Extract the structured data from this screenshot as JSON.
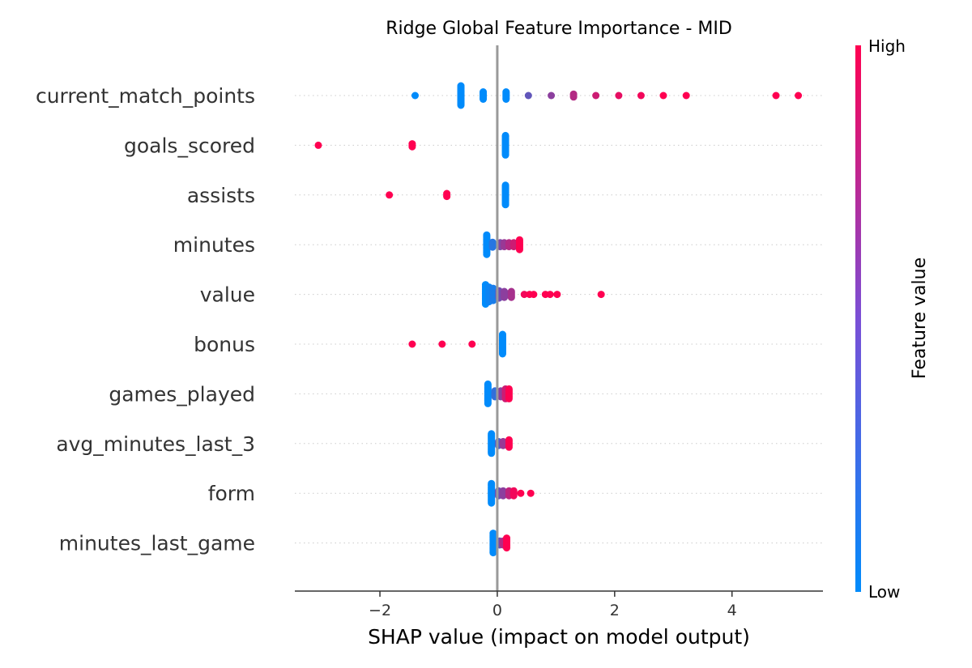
{
  "chart_data": {
    "type": "scatter",
    "subtype": "shap-beeswarm",
    "title": "Ridge Global Feature Importance - MID",
    "xlabel": "SHAP value (impact on model output)",
    "ylabel": "",
    "xlim": [
      -3.45,
      5.55
    ],
    "xticks": [
      -2,
      0,
      2,
      4
    ],
    "xtick_labels": [
      "−2",
      "0",
      "2",
      "4"
    ],
    "zero_line": 0,
    "grid": false,
    "colorbar": {
      "title": "Feature value",
      "high_label": "High",
      "low_label": "Low",
      "low_color": "#008bfb",
      "high_color": "#ff0051"
    },
    "features": [
      {
        "name": "current_match_points",
        "points": [
          {
            "x": -1.4,
            "c": 0.0
          },
          {
            "x": -0.62,
            "c": 0.0,
            "n": 20,
            "spread": 0.4
          },
          {
            "x": -0.24,
            "c": 0.0,
            "n": 8,
            "spread": 0.15
          },
          {
            "x": 0.15,
            "c": 0.0,
            "n": 8,
            "spread": 0.15
          },
          {
            "x": 0.53,
            "c": 0.38
          },
          {
            "x": 0.92,
            "c": 0.55
          },
          {
            "x": 1.3,
            "c": 0.7,
            "n": 3,
            "spread": 0.06
          },
          {
            "x": 1.68,
            "c": 0.8
          },
          {
            "x": 2.07,
            "c": 0.9
          },
          {
            "x": 2.45,
            "c": 0.95
          },
          {
            "x": 2.83,
            "c": 1.0
          },
          {
            "x": 3.22,
            "c": 1.0
          },
          {
            "x": 4.75,
            "c": 1.0
          },
          {
            "x": 5.13,
            "c": 1.0
          }
        ]
      },
      {
        "name": "goals_scored",
        "points": [
          {
            "x": -3.05,
            "c": 1.0
          },
          {
            "x": -1.45,
            "c": 1.0,
            "n": 3,
            "spread": 0.06
          },
          {
            "x": 0.14,
            "c": 0.0,
            "n": 20,
            "spread": 0.4
          }
        ]
      },
      {
        "name": "assists",
        "points": [
          {
            "x": -1.84,
            "c": 1.0
          },
          {
            "x": -0.86,
            "c": 1.0,
            "n": 3,
            "spread": 0.06
          },
          {
            "x": 0.14,
            "c": 0.0,
            "n": 20,
            "spread": 0.4
          }
        ]
      },
      {
        "name": "minutes",
        "points": [
          {
            "x": -0.18,
            "c": 0.0,
            "n": 20,
            "spread": 0.4
          },
          {
            "x": -0.08,
            "c": 0.15,
            "n": 5,
            "spread": 0.1
          },
          {
            "x": 0.05,
            "c": 0.5,
            "n": 4,
            "spread": 0.08
          },
          {
            "x": 0.12,
            "c": 0.6,
            "n": 4,
            "spread": 0.08
          },
          {
            "x": 0.2,
            "c": 0.7,
            "n": 4,
            "spread": 0.08
          },
          {
            "x": 0.28,
            "c": 0.8,
            "n": 4,
            "spread": 0.08
          },
          {
            "x": 0.38,
            "c": 1.0,
            "n": 8,
            "spread": 0.2
          }
        ]
      },
      {
        "name": "value",
        "points": [
          {
            "x": -0.2,
            "c": 0.0,
            "n": 14,
            "spread": 0.4
          },
          {
            "x": -0.14,
            "c": 0.05,
            "n": 12,
            "spread": 0.3
          },
          {
            "x": -0.07,
            "c": 0.1,
            "n": 10,
            "spread": 0.25
          },
          {
            "x": 0.03,
            "c": 0.45,
            "n": 6,
            "spread": 0.15
          },
          {
            "x": 0.12,
            "c": 0.55,
            "n": 5,
            "spread": 0.12
          },
          {
            "x": 0.24,
            "c": 0.65,
            "n": 5,
            "spread": 0.12
          },
          {
            "x": 0.46,
            "c": 0.95
          },
          {
            "x": 0.55,
            "c": 1.0
          },
          {
            "x": 0.62,
            "c": 1.0
          },
          {
            "x": 0.82,
            "c": 1.0
          },
          {
            "x": 0.9,
            "c": 1.0
          },
          {
            "x": 1.02,
            "c": 1.0
          },
          {
            "x": 1.77,
            "c": 1.0
          }
        ]
      },
      {
        "name": "bonus",
        "points": [
          {
            "x": -1.45,
            "c": 1.0
          },
          {
            "x": -0.94,
            "c": 1.0
          },
          {
            "x": -0.43,
            "c": 1.0
          },
          {
            "x": 0.09,
            "c": 0.0,
            "n": 20,
            "spread": 0.4
          }
        ]
      },
      {
        "name": "games_played",
        "points": [
          {
            "x": -0.16,
            "c": 0.0,
            "n": 20,
            "spread": 0.4
          },
          {
            "x": -0.04,
            "c": 0.2,
            "n": 6,
            "spread": 0.12
          },
          {
            "x": 0.06,
            "c": 0.55,
            "n": 6,
            "spread": 0.12
          },
          {
            "x": 0.14,
            "c": 0.8,
            "n": 8,
            "spread": 0.2
          },
          {
            "x": 0.2,
            "c": 1.0,
            "n": 8,
            "spread": 0.2
          }
        ]
      },
      {
        "name": "avg_minutes_last_3",
        "points": [
          {
            "x": -0.1,
            "c": 0.0,
            "n": 20,
            "spread": 0.4
          },
          {
            "x": 0.02,
            "c": 0.3,
            "n": 4,
            "spread": 0.08
          },
          {
            "x": 0.1,
            "c": 0.6,
            "n": 4,
            "spread": 0.08
          },
          {
            "x": 0.2,
            "c": 1.0,
            "n": 6,
            "spread": 0.15
          }
        ]
      },
      {
        "name": "form",
        "points": [
          {
            "x": -0.1,
            "c": 0.0,
            "n": 20,
            "spread": 0.4
          },
          {
            "x": 0.02,
            "c": 0.4,
            "n": 5,
            "spread": 0.1
          },
          {
            "x": 0.1,
            "c": 0.55,
            "n": 5,
            "spread": 0.1
          },
          {
            "x": 0.2,
            "c": 0.75,
            "n": 5,
            "spread": 0.1
          },
          {
            "x": 0.28,
            "c": 0.95,
            "n": 5,
            "spread": 0.1
          },
          {
            "x": 0.4,
            "c": 1.0
          },
          {
            "x": 0.57,
            "c": 1.0
          }
        ]
      },
      {
        "name": "minutes_last_game",
        "points": [
          {
            "x": -0.07,
            "c": 0.0,
            "n": 20,
            "spread": 0.4
          },
          {
            "x": 0.04,
            "c": 0.4,
            "n": 4,
            "spread": 0.08
          },
          {
            "x": 0.1,
            "c": 0.7,
            "n": 4,
            "spread": 0.08
          },
          {
            "x": 0.16,
            "c": 1.0,
            "n": 8,
            "spread": 0.2
          }
        ]
      }
    ]
  }
}
